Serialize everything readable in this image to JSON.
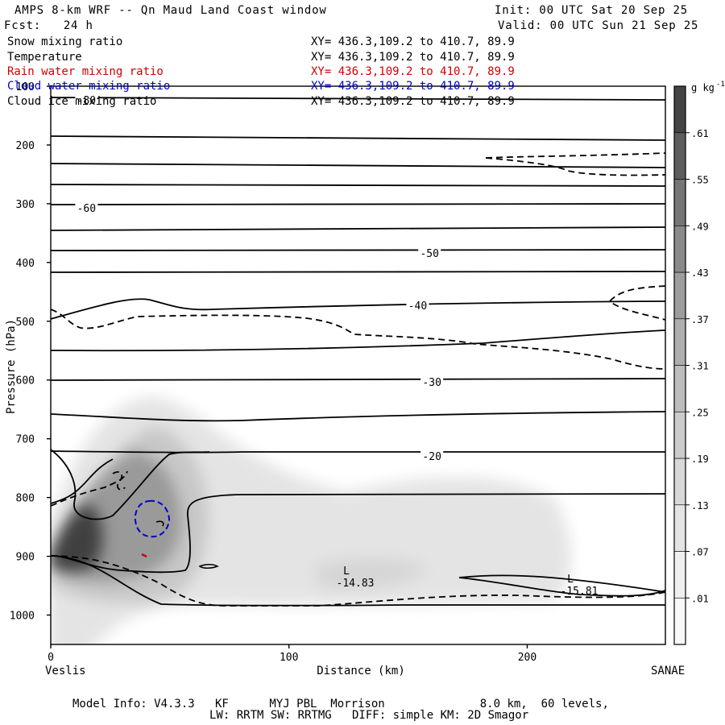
{
  "header": {
    "title": "AMPS 8-km WRF -- Qn Maud Land Coast window",
    "init": "Init: 00 UTC Sat 20 Sep 25",
    "fcst": "Fcst:   24 h",
    "valid": "Valid: 00 UTC Sun 21 Sep 25"
  },
  "legend": [
    {
      "name": "Snow mixing ratio",
      "xy": "XY= 436.3,109.2 to 410.7, 89.9",
      "color": "#000000"
    },
    {
      "name": "Temperature",
      "xy": "XY= 436.3,109.2 to 410.7, 89.9",
      "color": "#000000"
    },
    {
      "name": "Rain water mixing ratio",
      "xy": "XY= 436.3,109.2 to 410.7, 89.9",
      "color": "#d00000"
    },
    {
      "name": "Cloud water mixing ratio",
      "xy": "XY= 436.3,109.2 to 410.7, 89.9",
      "color": "#0000cc"
    },
    {
      "name": "Cloud ice mixing ratio",
      "xy": "XY= 436.3,109.2 to 410.7, 89.9",
      "color": "#000000"
    }
  ],
  "chart_data": {
    "type": "contour",
    "title": "AMPS 8-km WRF -- Qn Maud Land Coast window",
    "xlabel": "Distance (km)",
    "ylabel": "Pressure (hPa)",
    "xlim": [
      0,
      258
    ],
    "ylim": [
      1050,
      100
    ],
    "x_ticks": [
      0,
      100,
      200
    ],
    "y_ticks": [
      100,
      200,
      300,
      400,
      500,
      600,
      700,
      800,
      900,
      1000
    ],
    "x_endpoints": {
      "left": "Veslis",
      "right": "SANAE"
    },
    "temperature_contour_labels": [
      {
        "label": "-80",
        "x": 15,
        "p": 100
      },
      {
        "label": "-60",
        "x": 15,
        "p": 300
      },
      {
        "label": "-50",
        "x": 159,
        "p": 360
      },
      {
        "label": "-40",
        "x": 154,
        "p": 500
      },
      {
        "label": "-30",
        "x": 160,
        "p": 600
      },
      {
        "label": "-20",
        "x": 160,
        "p": 700
      }
    ],
    "lows": [
      {
        "label": "L",
        "value": "-14.83",
        "x": 128,
        "p": 930
      },
      {
        "label": "L",
        "value": "-15.81",
        "x": 218,
        "p": 960
      }
    ],
    "colorbar": {
      "units": "g kg",
      "units_sup": "-1",
      "levels": [
        ".01",
        ".07",
        ".13",
        ".19",
        ".25",
        ".31",
        ".37",
        ".43",
        ".49",
        ".55",
        ".61"
      ]
    }
  },
  "footer": {
    "line1": "Model Info: V4.3.3   KF      MYJ PBL  Morrison              8.0 km,  60 levels,",
    "line2": "LW: RRTM SW: RRTMG   DIFF: simple KM: 2D Smagor"
  }
}
